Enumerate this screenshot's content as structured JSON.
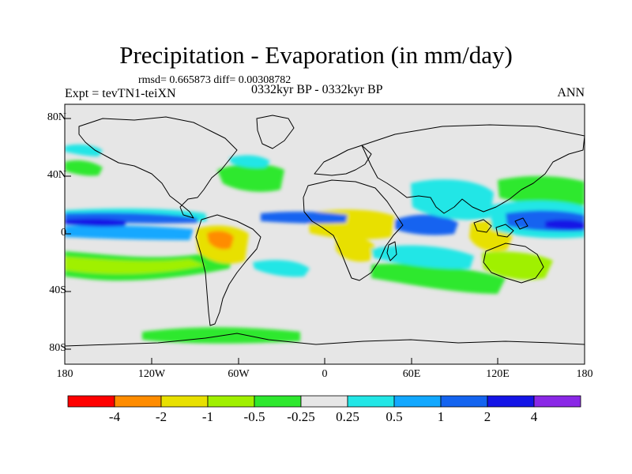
{
  "title": "Precipitation - Evaporation (in mm/day)",
  "stats_line": "rmsd= 0.665873 diff= 0.00308782",
  "experiment_label": "Expt = tevTN1-teiXN",
  "period_label": "0332kyr BP - 0332kyr BP",
  "season_label": "ANN",
  "axes": {
    "y_ticks": [
      "80N",
      "40N",
      "0",
      "40S",
      "80S"
    ],
    "x_ticks": [
      "180",
      "120W",
      "60W",
      "0",
      "60E",
      "120E",
      "180"
    ]
  },
  "colorbar": {
    "labels": [
      "-4",
      "-2",
      "-1",
      "-0.5",
      "-0.25",
      "0.25",
      "0.5",
      "1",
      "2",
      "4"
    ],
    "colors": [
      "#ff0000",
      "#ff8c00",
      "#e8e000",
      "#a0f000",
      "#2ee82e",
      "#e6e6e6",
      "#22e6e6",
      "#12a8ff",
      "#1464f0",
      "#1414e6",
      "#8a28e6"
    ]
  }
}
